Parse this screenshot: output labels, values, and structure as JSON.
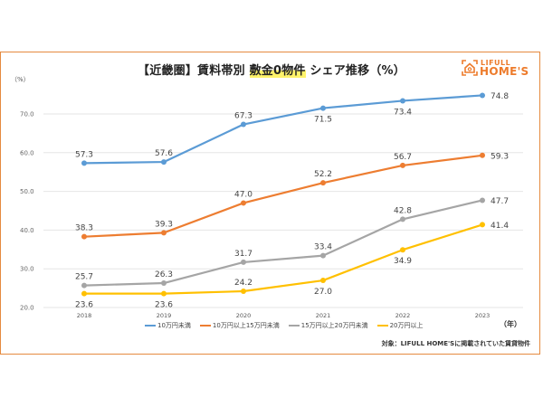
{
  "title": {
    "prefix": "【近畿圏】賃料帯別 ",
    "highlight": "敷金0物件",
    "suffix": " シェア推移（%）"
  },
  "logo": {
    "small": "LIFULL",
    "big": "HOME'S",
    "color": "#ed7b2b"
  },
  "footnote": "対象：LIFULL HOME'Sに掲載されていた賃貸物件",
  "chart_data": {
    "type": "line",
    "title": "【近畿圏】賃料帯別 敷金0物件 シェア推移（%）",
    "xlabel": "（年）",
    "ylabel": "（%）",
    "x": [
      "2018",
      "2019",
      "2020",
      "2021",
      "2022",
      "2023"
    ],
    "yticks": [
      "20.0",
      "30.0",
      "40.0",
      "50.0",
      "60.0",
      "70.0"
    ],
    "ylim": [
      20,
      70
    ],
    "grid": true,
    "legend_position": "bottom",
    "series": [
      {
        "name": "10万円未満",
        "color": "#5b9bd5",
        "values": [
          57.3,
          57.6,
          67.3,
          71.5,
          73.4,
          74.8
        ],
        "labels": [
          "57.3",
          "57.6",
          "67.3",
          "71.5",
          "73.4",
          "74.8"
        ],
        "label_pos": [
          "above",
          "above",
          "above",
          "below",
          "below",
          "right"
        ]
      },
      {
        "name": "10万円以上15万円未満",
        "color": "#ed7d31",
        "values": [
          38.3,
          39.3,
          47.0,
          52.2,
          56.7,
          59.3
        ],
        "labels": [
          "38.3",
          "39.3",
          "47.0",
          "52.2",
          "56.7",
          "59.3"
        ],
        "label_pos": [
          "above",
          "above",
          "above",
          "above",
          "above",
          "right"
        ]
      },
      {
        "name": "15万円以上20万円未満",
        "color": "#a5a5a5",
        "values": [
          25.7,
          26.3,
          31.7,
          33.4,
          42.8,
          47.7
        ],
        "labels": [
          "25.7",
          "26.3",
          "31.7",
          "33.4",
          "42.8",
          "47.7"
        ],
        "label_pos": [
          "above",
          "above",
          "above",
          "above",
          "above",
          "right"
        ]
      },
      {
        "name": "20万円以上",
        "color": "#ffc000",
        "values": [
          23.6,
          23.6,
          24.2,
          27.0,
          34.9,
          41.4
        ],
        "labels": [
          "23.6",
          "23.6",
          "24.2",
          "27.0",
          "34.9",
          "41.4"
        ],
        "label_pos": [
          "below",
          "below",
          "above",
          "below",
          "below",
          "right"
        ]
      }
    ]
  }
}
